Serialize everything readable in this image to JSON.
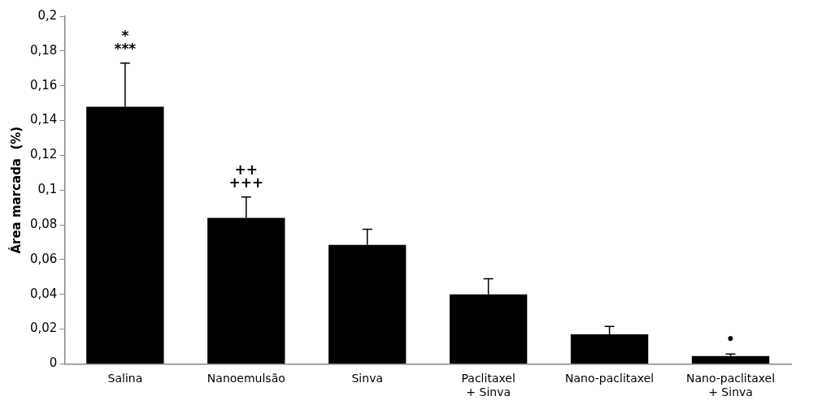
{
  "chart_data": {
    "type": "bar",
    "ylabel": "Área marcada  (%)",
    "categories": [
      "Salina",
      "Nanoemulsão",
      "Sinva",
      "Paclitaxel\n+ Sinva",
      "Nano-paclitaxel",
      "Nano-paclitaxel\n+ Sinva"
    ],
    "values": [
      0.148,
      0.084,
      0.0685,
      0.04,
      0.017,
      0.0045
    ],
    "errors": [
      [
        0.148,
        0.173
      ],
      [
        0.084,
        0.096
      ],
      [
        0.0685,
        0.0775
      ],
      [
        0.04,
        0.049
      ],
      [
        0.017,
        0.0215
      ],
      [
        0.0045,
        0.0057
      ]
    ],
    "color": "#000000",
    "ylim": [
      0,
      0.2
    ],
    "yticks": [
      {
        "value": 0,
        "label": "0"
      },
      {
        "value": 0.02,
        "label": "0,02"
      },
      {
        "value": 0.04,
        "label": "0,04"
      },
      {
        "value": 0.06,
        "label": "0,06"
      },
      {
        "value": 0.08,
        "label": "0,08"
      },
      {
        "value": 0.1,
        "label": "0,1"
      },
      {
        "value": 0.12,
        "label": "0,12"
      },
      {
        "value": 0.14,
        "label": "0,14"
      },
      {
        "value": 0.16,
        "label": "0,16"
      },
      {
        "value": 0.18,
        "label": "0,18"
      },
      {
        "value": 0.2,
        "label": "0,2"
      }
    ],
    "annotations": [
      {
        "text": "*",
        "x": "Salina",
        "y": 0.173
      },
      {
        "text": "***",
        "x": "Salina",
        "y": 0.173
      },
      {
        "text": "++",
        "x": "Nanoemulsão",
        "y": 0.096
      },
      {
        "text": "+++",
        "x": "Nanoemulsão",
        "y": 0.096
      },
      {
        "text": "•",
        "x": "Nano-paclitaxel\n+ Sinva",
        "y": 0.0057
      }
    ],
    "grid": false,
    "legend": false
  }
}
